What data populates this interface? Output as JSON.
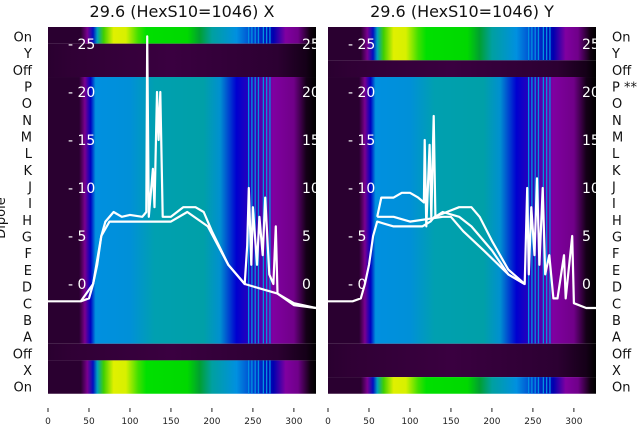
{
  "chart_data": {
    "type": "heatmap",
    "ylabel": "Dipole",
    "xlim": [
      0,
      327
    ],
    "xticks": [
      "0",
      "50",
      "100",
      "150",
      "200",
      "250",
      "300"
    ],
    "inner_yticks": [
      "0",
      "5",
      "10",
      "15",
      "20",
      "25"
    ],
    "inner_ylim_note": "overlay line scale",
    "panels": [
      {
        "title": "29.6 (HexS10=1046) X",
        "row_labels": [
          "On",
          "Y",
          "Off",
          "P",
          "O",
          "N",
          "M",
          "L",
          "K",
          "J",
          "I",
          "H",
          "G",
          "F",
          "E",
          "D",
          "C",
          "B",
          "A",
          "Off",
          "X",
          "On"
        ],
        "bands": [
          {
            "rows": [
              0,
              0
            ],
            "state": "on"
          },
          {
            "rows": [
              1,
              2
            ],
            "state": "off"
          },
          {
            "rows": [
              3,
              18
            ],
            "state": "main"
          },
          {
            "rows": [
              19,
              19
            ],
            "state": "off"
          },
          {
            "rows": [
              20,
              21
            ],
            "state": "on"
          }
        ],
        "traces": [
          [
            [
              0,
              -1.8
            ],
            [
              40,
              -1.8
            ],
            [
              50,
              -1.5
            ],
            [
              55,
              0
            ],
            [
              60,
              2
            ],
            [
              65,
              5
            ],
            [
              70,
              6.5
            ],
            [
              80,
              7.5
            ],
            [
              90,
              7
            ],
            [
              100,
              7.2
            ],
            [
              115,
              7
            ],
            [
              120,
              7.5
            ],
            [
              121,
              25.8
            ],
            [
              123,
              7
            ],
            [
              128,
              12
            ],
            [
              130,
              8
            ],
            [
              133,
              20
            ],
            [
              135,
              15
            ],
            [
              137,
              20
            ],
            [
              140,
              7
            ],
            [
              150,
              7
            ],
            [
              165,
              8
            ],
            [
              180,
              8
            ],
            [
              190,
              7.5
            ],
            [
              200,
              5.5
            ],
            [
              220,
              2
            ],
            [
              240,
              0
            ],
            [
              243,
              4
            ],
            [
              245,
              10
            ],
            [
              248,
              2
            ],
            [
              250,
              8
            ],
            [
              255,
              2
            ],
            [
              258,
              7
            ],
            [
              262,
              3
            ],
            [
              265,
              9
            ],
            [
              270,
              1
            ],
            [
              275,
              0
            ],
            [
              278,
              6
            ],
            [
              280,
              -1
            ],
            [
              290,
              -1.5
            ],
            [
              300,
              -2
            ],
            [
              327,
              -2.5
            ]
          ],
          [
            [
              40,
              -1.8
            ],
            [
              55,
              0
            ],
            [
              65,
              5
            ],
            [
              75,
              6.5
            ],
            [
              100,
              6.5
            ],
            [
              150,
              6.5
            ],
            [
              170,
              7.5
            ],
            [
              195,
              6
            ],
            [
              220,
              2
            ],
            [
              240,
              0
            ],
            [
              280,
              -1
            ],
            [
              300,
              -2.2
            ],
            [
              327,
              -2.5
            ]
          ]
        ]
      },
      {
        "title": "29.6 (HexS10=1046) Y",
        "row_labels": [
          "On",
          "Y",
          "Off",
          "P **",
          "O",
          "N",
          "M",
          "L",
          "K",
          "J",
          "I",
          "H",
          "G",
          "F",
          "E",
          "D",
          "C",
          "B",
          "A",
          "Off",
          "X",
          "On"
        ],
        "bands": [
          {
            "rows": [
              0,
              1
            ],
            "state": "on"
          },
          {
            "rows": [
              2,
              2
            ],
            "state": "off"
          },
          {
            "rows": [
              3,
              18
            ],
            "state": "main"
          },
          {
            "rows": [
              19,
              20
            ],
            "state": "off"
          },
          {
            "rows": [
              21,
              21
            ],
            "state": "on"
          }
        ],
        "traces": [
          [
            [
              0,
              -1.8
            ],
            [
              30,
              -1.8
            ],
            [
              40,
              -1.5
            ],
            [
              45,
              0
            ],
            [
              50,
              2
            ],
            [
              55,
              5
            ],
            [
              60,
              6.5
            ],
            [
              80,
              6
            ],
            [
              100,
              6
            ],
            [
              115,
              6
            ],
            [
              125,
              6.5
            ],
            [
              130,
              7
            ],
            [
              145,
              7.5
            ],
            [
              160,
              8
            ],
            [
              175,
              8
            ],
            [
              185,
              7
            ],
            [
              200,
              4.5
            ],
            [
              220,
              1.5
            ],
            [
              240,
              0
            ],
            [
              243,
              10
            ],
            [
              245,
              1
            ],
            [
              248,
              8
            ],
            [
              252,
              3
            ],
            [
              255,
              11
            ],
            [
              258,
              2
            ],
            [
              262,
              10
            ],
            [
              265,
              1
            ],
            [
              270,
              3
            ],
            [
              275,
              -1.5
            ],
            [
              280,
              -1.5
            ],
            [
              288,
              3
            ],
            [
              290,
              -1.5
            ],
            [
              298,
              5
            ],
            [
              300,
              -2
            ],
            [
              315,
              -2.5
            ],
            [
              327,
              -2.5
            ]
          ],
          [
            [
              60,
              7
            ],
            [
              65,
              9
            ],
            [
              80,
              9
            ],
            [
              90,
              9.5
            ],
            [
              100,
              9.5
            ],
            [
              110,
              9
            ],
            [
              117,
              8.5
            ],
            [
              118,
              15
            ],
            [
              120,
              6
            ],
            [
              124,
              14.5
            ],
            [
              126,
              7
            ],
            [
              129,
              17.5
            ],
            [
              131,
              7
            ],
            [
              140,
              7.5
            ],
            [
              160,
              7
            ],
            [
              175,
              6
            ],
            [
              200,
              3.5
            ],
            [
              220,
              1
            ],
            [
              240,
              0
            ]
          ],
          [
            [
              60,
              7
            ],
            [
              80,
              7
            ],
            [
              100,
              6.5
            ],
            [
              140,
              7
            ],
            [
              150,
              7
            ],
            [
              165,
              5.5
            ],
            [
              190,
              3.5
            ],
            [
              220,
              1
            ],
            [
              240,
              0
            ]
          ]
        ]
      }
    ],
    "colormaps": {
      "on": [
        [
          0,
          "#2a0030"
        ],
        [
          40,
          "#2a0030"
        ],
        [
          48,
          "#7a0090"
        ],
        [
          55,
          "#0010c0"
        ],
        [
          60,
          "#00a0c0"
        ],
        [
          68,
          "#40d000"
        ],
        [
          80,
          "#e0f000"
        ],
        [
          95,
          "#d8f000"
        ],
        [
          110,
          "#40e000"
        ],
        [
          120,
          "#00e000"
        ],
        [
          170,
          "#00d800"
        ],
        [
          185,
          "#00a030"
        ],
        [
          200,
          "#00a0a0"
        ],
        [
          230,
          "#0090e0"
        ],
        [
          250,
          "#0040d0"
        ],
        [
          275,
          "#0000b0"
        ],
        [
          290,
          "#8000a0"
        ],
        [
          305,
          "#70008a"
        ],
        [
          320,
          "#100010"
        ],
        [
          327,
          "#000000"
        ]
      ],
      "off": [
        [
          0,
          "#2a0030"
        ],
        [
          30,
          "#300035"
        ],
        [
          150,
          "#3a0040"
        ],
        [
          280,
          "#2c0032"
        ],
        [
          315,
          "#150018"
        ],
        [
          327,
          "#000000"
        ]
      ],
      "main": [
        [
          0,
          "#2a0030"
        ],
        [
          38,
          "#2a0030"
        ],
        [
          45,
          "#7a0090"
        ],
        [
          52,
          "#0000c0"
        ],
        [
          58,
          "#0090e0"
        ],
        [
          100,
          "#0090d8"
        ],
        [
          130,
          "#00a0b0"
        ],
        [
          190,
          "#00a0a8"
        ],
        [
          210,
          "#0090d0"
        ],
        [
          230,
          "#0000d0"
        ],
        [
          255,
          "#4000b0"
        ],
        [
          275,
          "#8000a0"
        ],
        [
          300,
          "#700088"
        ],
        [
          315,
          "#150018"
        ],
        [
          327,
          "#000000"
        ]
      ]
    },
    "streak_x": [
      244,
      248,
      252,
      256,
      262,
      266,
      270
    ],
    "streak_color": "#0090e0",
    "trace_color": "#ffffff"
  }
}
